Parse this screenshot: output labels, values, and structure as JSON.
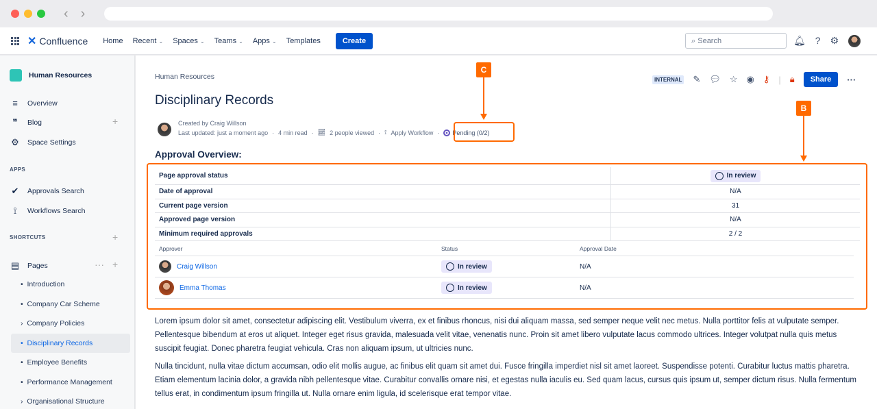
{
  "top_nav": {
    "product": "Confluence",
    "items": [
      "Home",
      "Recent",
      "Spaces",
      "Teams",
      "Apps",
      "Templates"
    ],
    "create": "Create",
    "search_placeholder": "Search"
  },
  "sidebar": {
    "space": "Human Resources",
    "items": [
      "Overview",
      "Blog",
      "Space Settings"
    ],
    "apps_header": "APPS",
    "apps": [
      "Approvals Search",
      "Workflows Search"
    ],
    "shortcuts_header": "SHORTCUTS",
    "pages_label": "Pages",
    "pages": [
      "Introduction",
      "Company Car Scheme",
      "Company Policies",
      "Disciplinary Records",
      "Employee Benefits",
      "Performance Management",
      "Organisational Structure"
    ],
    "selected": "Disciplinary Records"
  },
  "page": {
    "breadcrumb": "Human Resources",
    "title": "Disciplinary Records",
    "created_by": "Created by Craig Willson",
    "last_updated": "Last updated: just a moment ago",
    "read_time": "4 min read",
    "views": "2 people viewed",
    "apply_workflow": "Apply Workflow",
    "pending": "Pending (0/2)",
    "badge": "INTERNAL",
    "share": "Share"
  },
  "approval": {
    "heading": "Approval Overview:",
    "rows": [
      {
        "k": "Page approval status",
        "v": "In review"
      },
      {
        "k": "Date of approval",
        "v": "N/A"
      },
      {
        "k": "Current page version",
        "v": "31"
      },
      {
        "k": "Approved page version",
        "v": "N/A"
      },
      {
        "k": "Minimum required approvals",
        "v": "2 / 2"
      }
    ],
    "headers": [
      "Approver",
      "Status",
      "Approval Date"
    ],
    "approvers": [
      {
        "name": "Craig Willson",
        "status": "In review",
        "date": "N/A"
      },
      {
        "name": "Emma Thomas",
        "status": "In review",
        "date": "N/A"
      }
    ]
  },
  "body": [
    "Lorem ipsum dolor sit amet, consectetur adipiscing elit. Vestibulum viverra, ex et finibus rhoncus, nisi dui aliquam massa, sed semper neque velit nec metus. Nulla porttitor felis at vulputate semper. Pellentesque bibendum at eros ut aliquet. Integer eget risus gravida, malesuada velit vitae, venenatis nunc. Proin sit amet libero vulputate lacus commodo ultrices. Integer volutpat nulla quis metus suscipit feugiat. Donec pharetra feugiat vehicula. Cras non aliquam ipsum, ut ultricies nunc.",
    "Nulla tincidunt, nulla vitae dictum accumsan, odio elit mollis augue, ac finibus elit quam sit amet dui. Fusce fringilla imperdiet nisl sit amet laoreet. Suspendisse potenti. Curabitur luctus mattis pharetra. Etiam elementum lacinia dolor, a gravida nibh pellentesque vitae. Curabitur convallis ornare nisi, et egestas nulla iaculis eu. Sed quam lacus, cursus quis ipsum ut, semper dictum risus. Nulla fermentum tellus erat, in condimentum ipsum fringilla ut. Nulla ornare enim ligula, id scelerisque erat tempor vitae."
  ],
  "markers": {
    "c": "C",
    "b": "B"
  },
  "colors": {
    "accent": "#0052cc",
    "marker": "#ff6a00",
    "pending": "#6554c0"
  }
}
